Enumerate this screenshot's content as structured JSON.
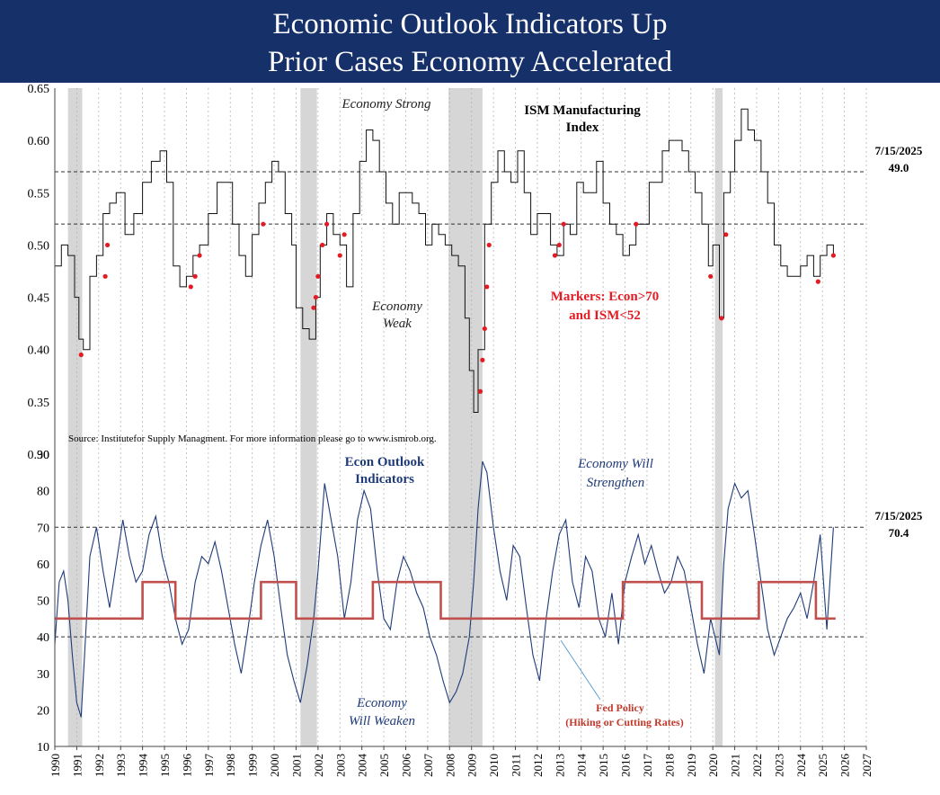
{
  "header": {
    "title_line1": "Economic Outlook Indicators Up",
    "title_line2": "Prior Cases Economy Accelerated"
  },
  "chart_data": {
    "type": "line",
    "x_range": [
      1990,
      2027
    ],
    "x_tick_labels": [
      "1990",
      "1991",
      "1992",
      "1993",
      "1994",
      "1995",
      "1996",
      "1997",
      "1998",
      "1999",
      "2000",
      "2001",
      "2002",
      "2003",
      "2004",
      "2005",
      "2006",
      "2007",
      "2008",
      "2009",
      "2010",
      "2011",
      "2012",
      "2013",
      "2014",
      "2015",
      "2016",
      "2017",
      "2018",
      "2019",
      "2020",
      "2021",
      "2022",
      "2023",
      "2024",
      "2025",
      "2026",
      "2027"
    ],
    "recessions": [
      [
        1990.6,
        1991.25
      ],
      [
        2001.2,
        2001.95
      ],
      [
        2007.95,
        2009.5
      ],
      [
        2020.1,
        2020.45
      ]
    ],
    "top_panel": {
      "title_line1": "ISM Manufacturing",
      "title_line2": "Index",
      "ylim": [
        0.3,
        0.65
      ],
      "y_tick_labels": [
        "0.65",
        "0.60",
        "0.55",
        "0.50",
        "0.45",
        "0.40",
        "0.35",
        "0.30"
      ],
      "reference_lines": [
        0.57,
        0.52
      ],
      "latest_date": "7/15/2025",
      "latest_value": "49.0",
      "annotation_strong": "Economy Strong",
      "annotation_weak_1": "Economy",
      "annotation_weak_2": "Weak",
      "markers_note_1": "Markers: Econ>70",
      "markers_note_2": "and ISM<52",
      "source": "Source:  Institutefor Supply Managment.  For more information please go to www.ismrob.org.",
      "series": {
        "name": "ISM Manufacturing Index",
        "x": [
          1990.0,
          1990.3,
          1990.6,
          1990.9,
          1991.1,
          1991.3,
          1991.6,
          1991.9,
          1992.2,
          1992.5,
          1992.8,
          1993.2,
          1993.6,
          1994.0,
          1994.4,
          1994.8,
          1995.1,
          1995.4,
          1995.7,
          1996.0,
          1996.3,
          1996.6,
          1997.0,
          1997.4,
          1997.8,
          1998.1,
          1998.4,
          1998.7,
          1999.0,
          1999.3,
          1999.6,
          1999.9,
          2000.2,
          2000.5,
          2000.8,
          2001.0,
          2001.3,
          2001.6,
          2001.9,
          2002.1,
          2002.4,
          2002.7,
          2003.0,
          2003.3,
          2003.6,
          2003.9,
          2004.2,
          2004.5,
          2004.8,
          2005.1,
          2005.4,
          2005.7,
          2006.0,
          2006.3,
          2006.6,
          2006.9,
          2007.2,
          2007.5,
          2007.8,
          2008.1,
          2008.4,
          2008.7,
          2008.9,
          2009.1,
          2009.3,
          2009.6,
          2009.9,
          2010.2,
          2010.5,
          2010.8,
          2011.1,
          2011.4,
          2011.7,
          2012.0,
          2012.3,
          2012.6,
          2012.9,
          2013.2,
          2013.5,
          2013.8,
          2014.1,
          2014.4,
          2014.7,
          2015.0,
          2015.3,
          2015.6,
          2015.9,
          2016.2,
          2016.5,
          2016.8,
          2017.1,
          2017.4,
          2017.7,
          2018.0,
          2018.3,
          2018.6,
          2018.9,
          2019.2,
          2019.5,
          2019.8,
          2020.0,
          2020.3,
          2020.5,
          2020.8,
          2021.0,
          2021.3,
          2021.6,
          2021.9,
          2022.2,
          2022.5,
          2022.8,
          2023.1,
          2023.4,
          2023.7,
          2024.0,
          2024.3,
          2024.6,
          2024.9,
          2025.2,
          2025.5
        ],
        "values": [
          0.48,
          0.5,
          0.49,
          0.45,
          0.41,
          0.4,
          0.47,
          0.49,
          0.53,
          0.54,
          0.55,
          0.51,
          0.53,
          0.56,
          0.58,
          0.59,
          0.56,
          0.48,
          0.46,
          0.47,
          0.49,
          0.5,
          0.53,
          0.56,
          0.56,
          0.52,
          0.49,
          0.47,
          0.51,
          0.54,
          0.56,
          0.58,
          0.57,
          0.53,
          0.5,
          0.44,
          0.42,
          0.41,
          0.45,
          0.5,
          0.53,
          0.51,
          0.5,
          0.46,
          0.53,
          0.58,
          0.61,
          0.6,
          0.57,
          0.54,
          0.52,
          0.55,
          0.55,
          0.54,
          0.53,
          0.5,
          0.52,
          0.51,
          0.5,
          0.49,
          0.48,
          0.43,
          0.38,
          0.34,
          0.4,
          0.52,
          0.56,
          0.59,
          0.57,
          0.56,
          0.59,
          0.55,
          0.51,
          0.53,
          0.53,
          0.5,
          0.49,
          0.52,
          0.51,
          0.56,
          0.55,
          0.55,
          0.58,
          0.54,
          0.52,
          0.51,
          0.49,
          0.5,
          0.52,
          0.52,
          0.56,
          0.56,
          0.59,
          0.6,
          0.6,
          0.59,
          0.57,
          0.55,
          0.52,
          0.48,
          0.5,
          0.43,
          0.55,
          0.57,
          0.6,
          0.63,
          0.61,
          0.6,
          0.57,
          0.54,
          0.5,
          0.48,
          0.47,
          0.47,
          0.48,
          0.49,
          0.47,
          0.49,
          0.5,
          0.49
        ]
      },
      "marker_points": {
        "x": [
          1991.2,
          1992.3,
          1992.4,
          1996.2,
          1996.4,
          1996.6,
          1999.5,
          2001.8,
          2001.9,
          2002.0,
          2002.2,
          2002.4,
          2003.0,
          2003.2,
          2009.4,
          2009.5,
          2009.6,
          2009.7,
          2009.8,
          2012.8,
          2013.0,
          2013.2,
          2016.5,
          2019.9,
          2020.4,
          2020.6,
          2024.8,
          2025.5
        ],
        "values": [
          0.395,
          0.47,
          0.5,
          0.46,
          0.47,
          0.49,
          0.52,
          0.44,
          0.45,
          0.47,
          0.5,
          0.52,
          0.49,
          0.51,
          0.36,
          0.39,
          0.42,
          0.46,
          0.5,
          0.49,
          0.5,
          0.52,
          0.52,
          0.47,
          0.43,
          0.51,
          0.465,
          0.49
        ]
      }
    },
    "bottom_panel": {
      "title_line1": "Econ Outlook",
      "title_line2": "Indicators",
      "ylim": [
        10,
        90
      ],
      "y_tick_labels": [
        "90",
        "80",
        "70",
        "60",
        "50",
        "40",
        "30",
        "20",
        "10"
      ],
      "reference_lines": [
        70,
        40
      ],
      "latest_date": "7/15/2025",
      "latest_value": "70.4",
      "annotation_strengthen_1": "Economy Will",
      "annotation_strengthen_2": "Strengthen",
      "annotation_weaken_1": "Economy",
      "annotation_weaken_2": "Will Weaken",
      "fed_label_1": "Fed Policy",
      "fed_label_2": "(Hiking or Cutting Rates)",
      "series": {
        "name": "Econ Outlook Indicators",
        "x": [
          1990.0,
          1990.2,
          1990.4,
          1990.6,
          1990.8,
          1991.0,
          1991.2,
          1991.4,
          1991.6,
          1991.9,
          1992.2,
          1992.5,
          1992.8,
          1993.1,
          1993.4,
          1993.7,
          1994.0,
          1994.3,
          1994.6,
          1994.9,
          1995.2,
          1995.5,
          1995.8,
          1996.1,
          1996.4,
          1996.7,
          1997.0,
          1997.3,
          1997.6,
          1997.9,
          1998.2,
          1998.5,
          1998.8,
          1999.1,
          1999.4,
          1999.7,
          2000.0,
          2000.3,
          2000.6,
          2000.9,
          2001.2,
          2001.5,
          2001.8,
          2002.0,
          2002.3,
          2002.6,
          2002.9,
          2003.2,
          2003.5,
          2003.8,
          2004.1,
          2004.4,
          2004.7,
          2005.0,
          2005.3,
          2005.6,
          2005.9,
          2006.2,
          2006.5,
          2006.8,
          2007.1,
          2007.4,
          2007.7,
          2008.0,
          2008.3,
          2008.6,
          2008.9,
          2009.1,
          2009.3,
          2009.5,
          2009.7,
          2010.0,
          2010.3,
          2010.6,
          2010.9,
          2011.2,
          2011.5,
          2011.8,
          2012.1,
          2012.4,
          2012.7,
          2013.0,
          2013.3,
          2013.6,
          2013.9,
          2014.2,
          2014.5,
          2014.8,
          2015.1,
          2015.4,
          2015.7,
          2016.0,
          2016.3,
          2016.6,
          2016.9,
          2017.2,
          2017.5,
          2017.8,
          2018.1,
          2018.4,
          2018.7,
          2019.0,
          2019.3,
          2019.6,
          2019.9,
          2020.1,
          2020.3,
          2020.5,
          2020.7,
          2021.0,
          2021.3,
          2021.6,
          2021.9,
          2022.2,
          2022.5,
          2022.8,
          2023.1,
          2023.4,
          2023.7,
          2024.0,
          2024.3,
          2024.6,
          2024.9,
          2025.2,
          2025.5
        ],
        "values": [
          38,
          55,
          58,
          50,
          35,
          22,
          18,
          40,
          62,
          70,
          58,
          48,
          60,
          72,
          62,
          55,
          58,
          68,
          73,
          62,
          55,
          45,
          38,
          42,
          55,
          62,
          60,
          66,
          58,
          48,
          38,
          30,
          42,
          55,
          65,
          72,
          62,
          48,
          35,
          28,
          22,
          32,
          45,
          58,
          82,
          72,
          62,
          45,
          55,
          72,
          80,
          75,
          58,
          45,
          42,
          55,
          62,
          58,
          52,
          48,
          40,
          35,
          28,
          22,
          25,
          30,
          40,
          55,
          75,
          88,
          85,
          70,
          58,
          50,
          65,
          62,
          48,
          35,
          28,
          45,
          58,
          68,
          72,
          55,
          48,
          62,
          58,
          45,
          40,
          52,
          38,
          55,
          62,
          68,
          60,
          65,
          58,
          52,
          55,
          62,
          58,
          48,
          38,
          30,
          45,
          40,
          35,
          60,
          75,
          82,
          78,
          80,
          68,
          55,
          42,
          35,
          40,
          45,
          48,
          52,
          45,
          55,
          68,
          42,
          70
        ],
        "fed_policy": {
          "x": [
            1990.0,
            1994.0,
            1994.0,
            1995.5,
            1995.5,
            1999.4,
            1999.4,
            2001.0,
            2001.0,
            2004.5,
            2004.5,
            2007.6,
            2007.6,
            2015.9,
            2015.9,
            2019.5,
            2019.5,
            2022.1,
            2022.1,
            2024.7,
            2024.7,
            2025.6
          ],
          "values": [
            45,
            45,
            55,
            55,
            45,
            45,
            55,
            55,
            45,
            45,
            55,
            55,
            45,
            45,
            55,
            55,
            45,
            45,
            55,
            55,
            45,
            45
          ]
        }
      }
    }
  }
}
